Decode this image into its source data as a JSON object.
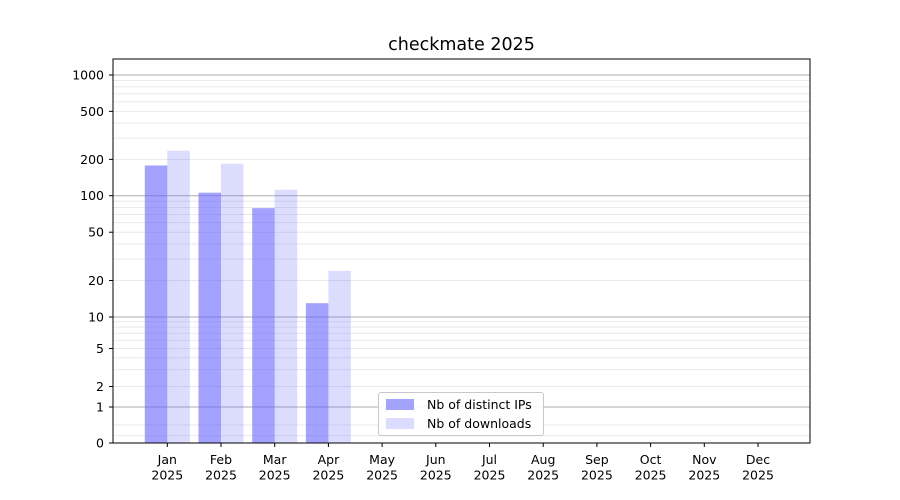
{
  "chart_data": {
    "type": "bar",
    "title": "checkmate 2025",
    "x_axis": {
      "months": [
        "Jan",
        "Feb",
        "Mar",
        "Apr",
        "May",
        "Jun",
        "Jul",
        "Aug",
        "Sep",
        "Oct",
        "Nov",
        "Dec"
      ],
      "year": "2025"
    },
    "y_axis": {
      "scale": "symlog",
      "tick_labels": [
        "0",
        "1",
        "2",
        "5",
        "10",
        "20",
        "50",
        "100",
        "200",
        "500",
        "1000"
      ],
      "tick_values": [
        0,
        1,
        2,
        5,
        10,
        20,
        50,
        100,
        200,
        500,
        1000
      ],
      "ylim": [
        0,
        1300
      ],
      "grid": true
    },
    "series": [
      {
        "name": "Nb of distinct IPs",
        "color": "rgba(102,102,255,0.60)",
        "values": [
          178,
          106,
          79,
          13,
          null,
          null,
          null,
          null,
          null,
          null,
          null,
          null
        ]
      },
      {
        "name": "Nb of downloads",
        "color": "rgba(102,102,255,0.23)",
        "values": [
          236,
          184,
          112,
          24,
          null,
          null,
          null,
          null,
          null,
          null,
          null,
          null
        ]
      }
    ],
    "legend_position": "lower-center-left-inside",
    "colors": {
      "accent": "#6666ff",
      "major_grid": "#adadad",
      "minor_grid": "#e9e9e9",
      "axis": "#000000",
      "text": "#000000",
      "background": "#ffffff"
    }
  }
}
